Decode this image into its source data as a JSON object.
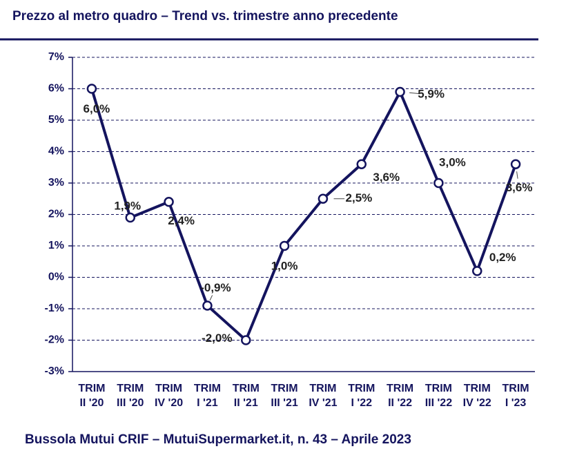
{
  "chart_data": {
    "type": "line",
    "title": "Prezzo al metro quadro – Trend vs. trimestre anno precedente",
    "source": "Bussola Mutui CRIF – MutuiSupermarket.it, n. 43 – Aprile 2023",
    "categories": [
      [
        "TRIM",
        "II '20"
      ],
      [
        "TRIM",
        "III '20"
      ],
      [
        "TRIM",
        "IV '20"
      ],
      [
        "TRIM",
        "I '21"
      ],
      [
        "TRIM",
        "II '21"
      ],
      [
        "TRIM",
        "III '21"
      ],
      [
        "TRIM",
        "IV '21"
      ],
      [
        "TRIM",
        "I '22"
      ],
      [
        "TRIM",
        "II '22"
      ],
      [
        "TRIM",
        "III '22"
      ],
      [
        "TRIM",
        "IV '22"
      ],
      [
        "TRIM",
        "I '23"
      ]
    ],
    "values": [
      6.0,
      1.9,
      2.4,
      -0.9,
      -2.0,
      1.0,
      2.5,
      3.6,
      5.9,
      3.0,
      0.2,
      3.6
    ],
    "value_labels": [
      "6,0%",
      "1,9%",
      "2,4%",
      "-0,9%",
      "-2,0%",
      "1,0%",
      "2,5%",
      "3,6%",
      "5,9%",
      "3,0%",
      "0,2%",
      "3,6%"
    ],
    "color": "#14145e",
    "ylim": [
      -3,
      7
    ],
    "yticks": [
      {
        "value": -3,
        "label": "-3%"
      },
      {
        "value": -2,
        "label": "-2%"
      },
      {
        "value": -1,
        "label": "-1%"
      },
      {
        "value": 0,
        "label": "0%"
      },
      {
        "value": 1,
        "label": "1%"
      },
      {
        "value": 2,
        "label": "2%"
      },
      {
        "value": 3,
        "label": "3%"
      },
      {
        "value": 4,
        "label": "4%"
      },
      {
        "value": 5,
        "label": "5%"
      },
      {
        "value": 6,
        "label": "6%"
      },
      {
        "value": 7,
        "label": "7%"
      }
    ],
    "grid": true
  }
}
